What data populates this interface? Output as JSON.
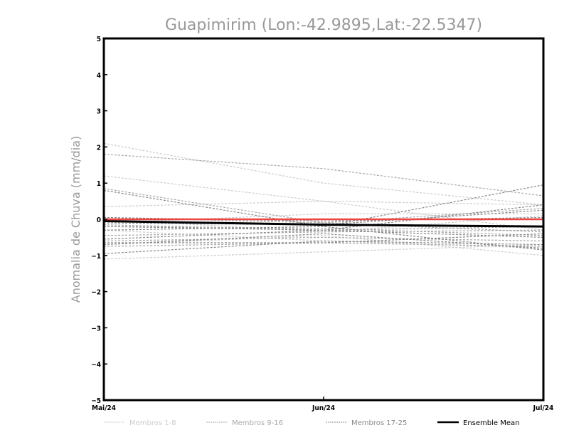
{
  "chart_data": {
    "type": "line",
    "title": "Guapimirim (Lon:-42.9895,Lat:-22.5347)",
    "xlabel": "",
    "ylabel": "Anomalia de Chuva (mm/dia)",
    "categories": [
      "Mai/24",
      "Jun/24",
      "Jul/24"
    ],
    "ylim": [
      -5,
      5
    ],
    "yticks": [
      -5,
      -4,
      -3,
      -2,
      -1,
      0,
      1,
      2,
      3,
      4,
      5
    ],
    "grid": false,
    "legend_position": "bottom",
    "groups": [
      {
        "name": "Membros 1-8",
        "color": "#cccccc",
        "series": [
          [
            2.1,
            1.0,
            0.4
          ],
          [
            1.2,
            0.5,
            -0.3
          ],
          [
            0.35,
            0.5,
            0.4
          ],
          [
            -0.1,
            0.15,
            0.15
          ],
          [
            -0.7,
            -0.45,
            -1.0
          ],
          [
            -1.1,
            -0.9,
            -0.7
          ],
          [
            -0.3,
            -0.6,
            -0.8
          ],
          [
            0.0,
            -0.35,
            0.1
          ]
        ]
      },
      {
        "name": "Membros 9-16",
        "color": "#a8a8a8",
        "series": [
          [
            1.8,
            1.4,
            0.65
          ],
          [
            0.85,
            -0.1,
            -0.35
          ],
          [
            -0.15,
            -0.3,
            -0.2
          ],
          [
            -0.6,
            -0.5,
            -0.6
          ],
          [
            -0.75,
            -0.65,
            -0.75
          ],
          [
            -0.2,
            -0.25,
            -0.45
          ],
          [
            -0.45,
            -0.35,
            -0.3
          ],
          [
            0.05,
            -0.1,
            0.3
          ]
        ]
      },
      {
        "name": "Membros 17-25",
        "color": "#888888",
        "series": [
          [
            0.8,
            -0.2,
            -0.85
          ],
          [
            -0.95,
            -0.6,
            -0.7
          ],
          [
            -0.3,
            -0.2,
            0.95
          ],
          [
            -0.65,
            -0.65,
            -0.4
          ],
          [
            -0.55,
            -0.3,
            0.4
          ],
          [
            -0.1,
            -0.15,
            0.25
          ],
          [
            -0.2,
            -0.3,
            -0.5
          ],
          [
            -0.7,
            -0.4,
            -0.8
          ],
          [
            0.05,
            -0.05,
            0.05
          ]
        ]
      }
    ],
    "ensemble_mean": {
      "name": "Ensemble Mean",
      "color": "#000000",
      "values": [
        -0.05,
        -0.15,
        -0.2
      ]
    },
    "reference_line": {
      "color": "#ee4444",
      "values": [
        0,
        0,
        0
      ]
    }
  }
}
